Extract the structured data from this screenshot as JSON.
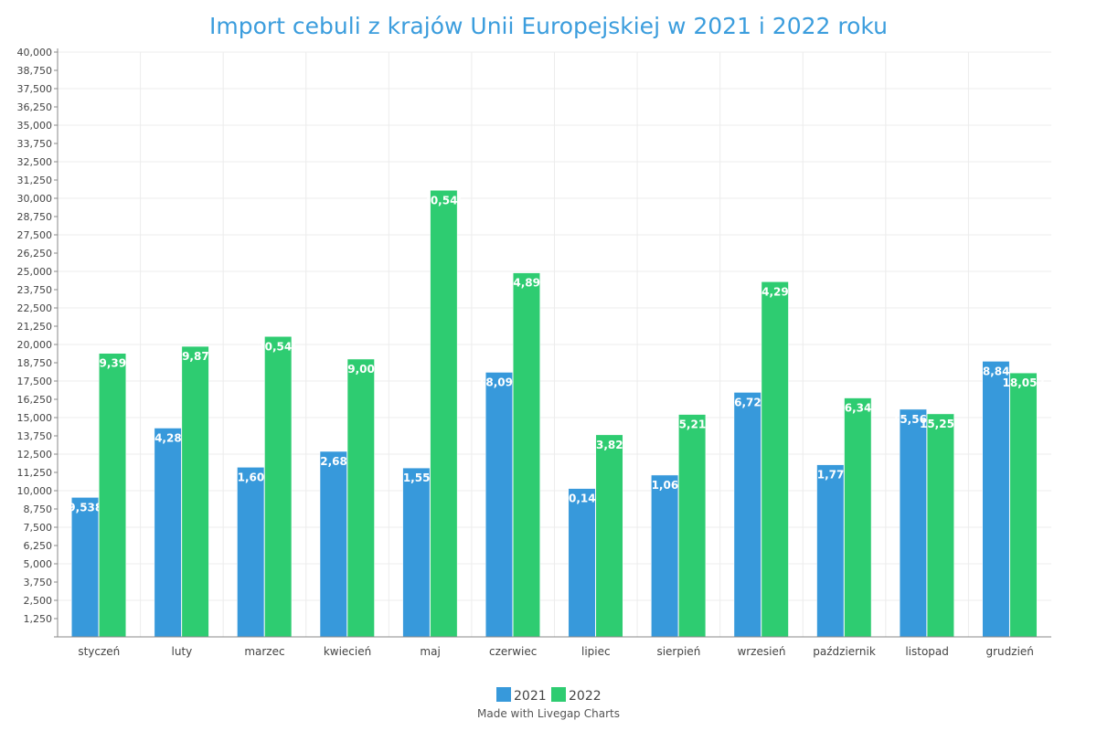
{
  "chart_data": {
    "type": "bar",
    "title": "Import cebuli z krajów Unii Europejskiej w 2021 i 2022 roku",
    "xlabel": "",
    "ylabel": "",
    "ylim": [
      0,
      40000
    ],
    "ytick_step": 1250,
    "grid": true,
    "legend_position": "bottom-center",
    "categories": [
      "styczeń",
      "luty",
      "marzec",
      "kwiecień",
      "maj",
      "czerwiec",
      "lipiec",
      "sierpień",
      "wrzesień",
      "październik",
      "listopad",
      "grudzień"
    ],
    "series": [
      {
        "name": "2021",
        "color": "#3799db",
        "values": [
          9538,
          14282,
          11601,
          12687,
          11553,
          18096,
          10148,
          11067,
          16723,
          11773,
          15568,
          18849
        ]
      },
      {
        "name": "2022",
        "color": "#2ecc71",
        "values": [
          19392,
          19870,
          20546,
          19002,
          30546,
          24899,
          13822,
          15213,
          24290,
          16340,
          15254,
          18053
        ]
      }
    ]
  },
  "credit": "Made with Livegap Charts"
}
